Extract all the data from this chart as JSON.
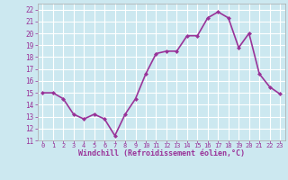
{
  "x": [
    0,
    1,
    2,
    3,
    4,
    5,
    6,
    7,
    8,
    9,
    10,
    11,
    12,
    13,
    14,
    15,
    16,
    17,
    18,
    19,
    20,
    21,
    22,
    23
  ],
  "y": [
    15.0,
    15.0,
    14.5,
    13.2,
    12.8,
    13.2,
    12.8,
    11.4,
    13.2,
    14.5,
    16.6,
    18.3,
    18.5,
    18.5,
    19.8,
    19.8,
    21.3,
    21.8,
    21.3,
    18.8,
    20.0,
    16.6,
    15.5,
    14.9
  ],
  "line_color": "#993399",
  "marker": "D",
  "marker_size": 2,
  "bg_color": "#cce8f0",
  "grid_color": "#ffffff",
  "xlabel": "Windchill (Refroidissement éolien,°C)",
  "xlabel_color": "#993399",
  "tick_color": "#993399",
  "ylim": [
    11,
    22.5
  ],
  "xlim": [
    -0.5,
    23.5
  ],
  "yticks": [
    11,
    12,
    13,
    14,
    15,
    16,
    17,
    18,
    19,
    20,
    21,
    22
  ],
  "xticks": [
    0,
    1,
    2,
    3,
    4,
    5,
    6,
    7,
    8,
    9,
    10,
    11,
    12,
    13,
    14,
    15,
    16,
    17,
    18,
    19,
    20,
    21,
    22,
    23
  ],
  "linewidth": 1.2
}
